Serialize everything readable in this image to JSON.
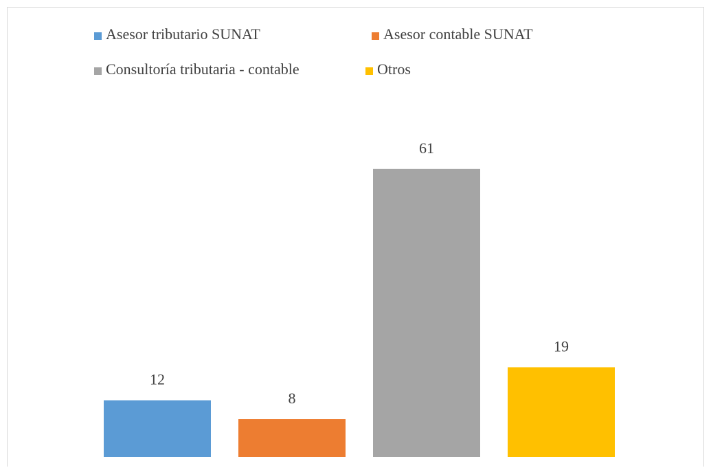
{
  "chart_data": {
    "type": "bar",
    "categories": [
      null
    ],
    "series": [
      {
        "name": "Asesor tributario SUNAT",
        "color": "#5b9bd5",
        "values": [
          12
        ]
      },
      {
        "name": "Asesor contable SUNAT",
        "color": "#ed7d31",
        "values": [
          8
        ]
      },
      {
        "name": "Consultoría tributaria - contable",
        "color": "#a5a5a5",
        "values": [
          61
        ]
      },
      {
        "name": "Otros",
        "color": "#ffc000",
        "values": [
          19
        ]
      }
    ],
    "ylim": [
      0,
      70
    ],
    "legend": "top"
  }
}
